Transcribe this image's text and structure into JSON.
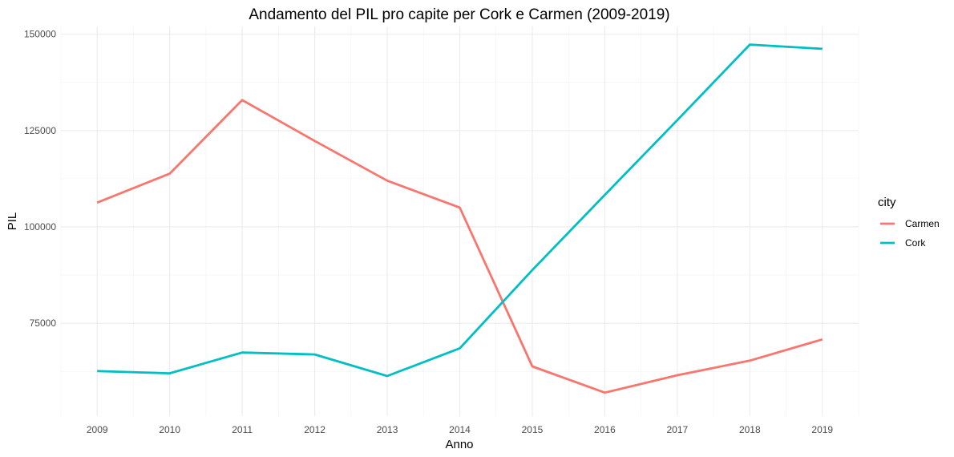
{
  "chart_data": {
    "type": "line",
    "title": "Andamento del PIL pro capite per Cork e Carmen (2009-2019)",
    "xlabel": "Anno",
    "ylabel": "PIL",
    "x": [
      2009,
      2010,
      2011,
      2012,
      2013,
      2014,
      2015,
      2016,
      2017,
      2018,
      2019
    ],
    "xlim": [
      2008.5,
      2019.5
    ],
    "ylim": [
      50900,
      152000
    ],
    "y_ticks": [
      75000,
      100000,
      125000,
      150000
    ],
    "y_tick_labels": [
      "75000",
      "100000",
      "125000",
      "150000"
    ],
    "x_tick_labels": [
      "2009",
      "2010",
      "2011",
      "2012",
      "2013",
      "2014",
      "2015",
      "2016",
      "2017",
      "2018",
      "2019"
    ],
    "grid": true,
    "legend_position": "right",
    "legend_title": "city",
    "series": [
      {
        "name": "Carmen",
        "color": "#F8766D",
        "values": [
          106300,
          113800,
          132900,
          122300,
          112000,
          105000,
          63800,
          57000,
          61500,
          65300,
          70800
        ]
      },
      {
        "name": "Cork",
        "color": "#00BFC4",
        "values": [
          62600,
          62000,
          67400,
          66900,
          61300,
          68500,
          88800,
          108300,
          127700,
          147300,
          146200
        ]
      }
    ]
  }
}
